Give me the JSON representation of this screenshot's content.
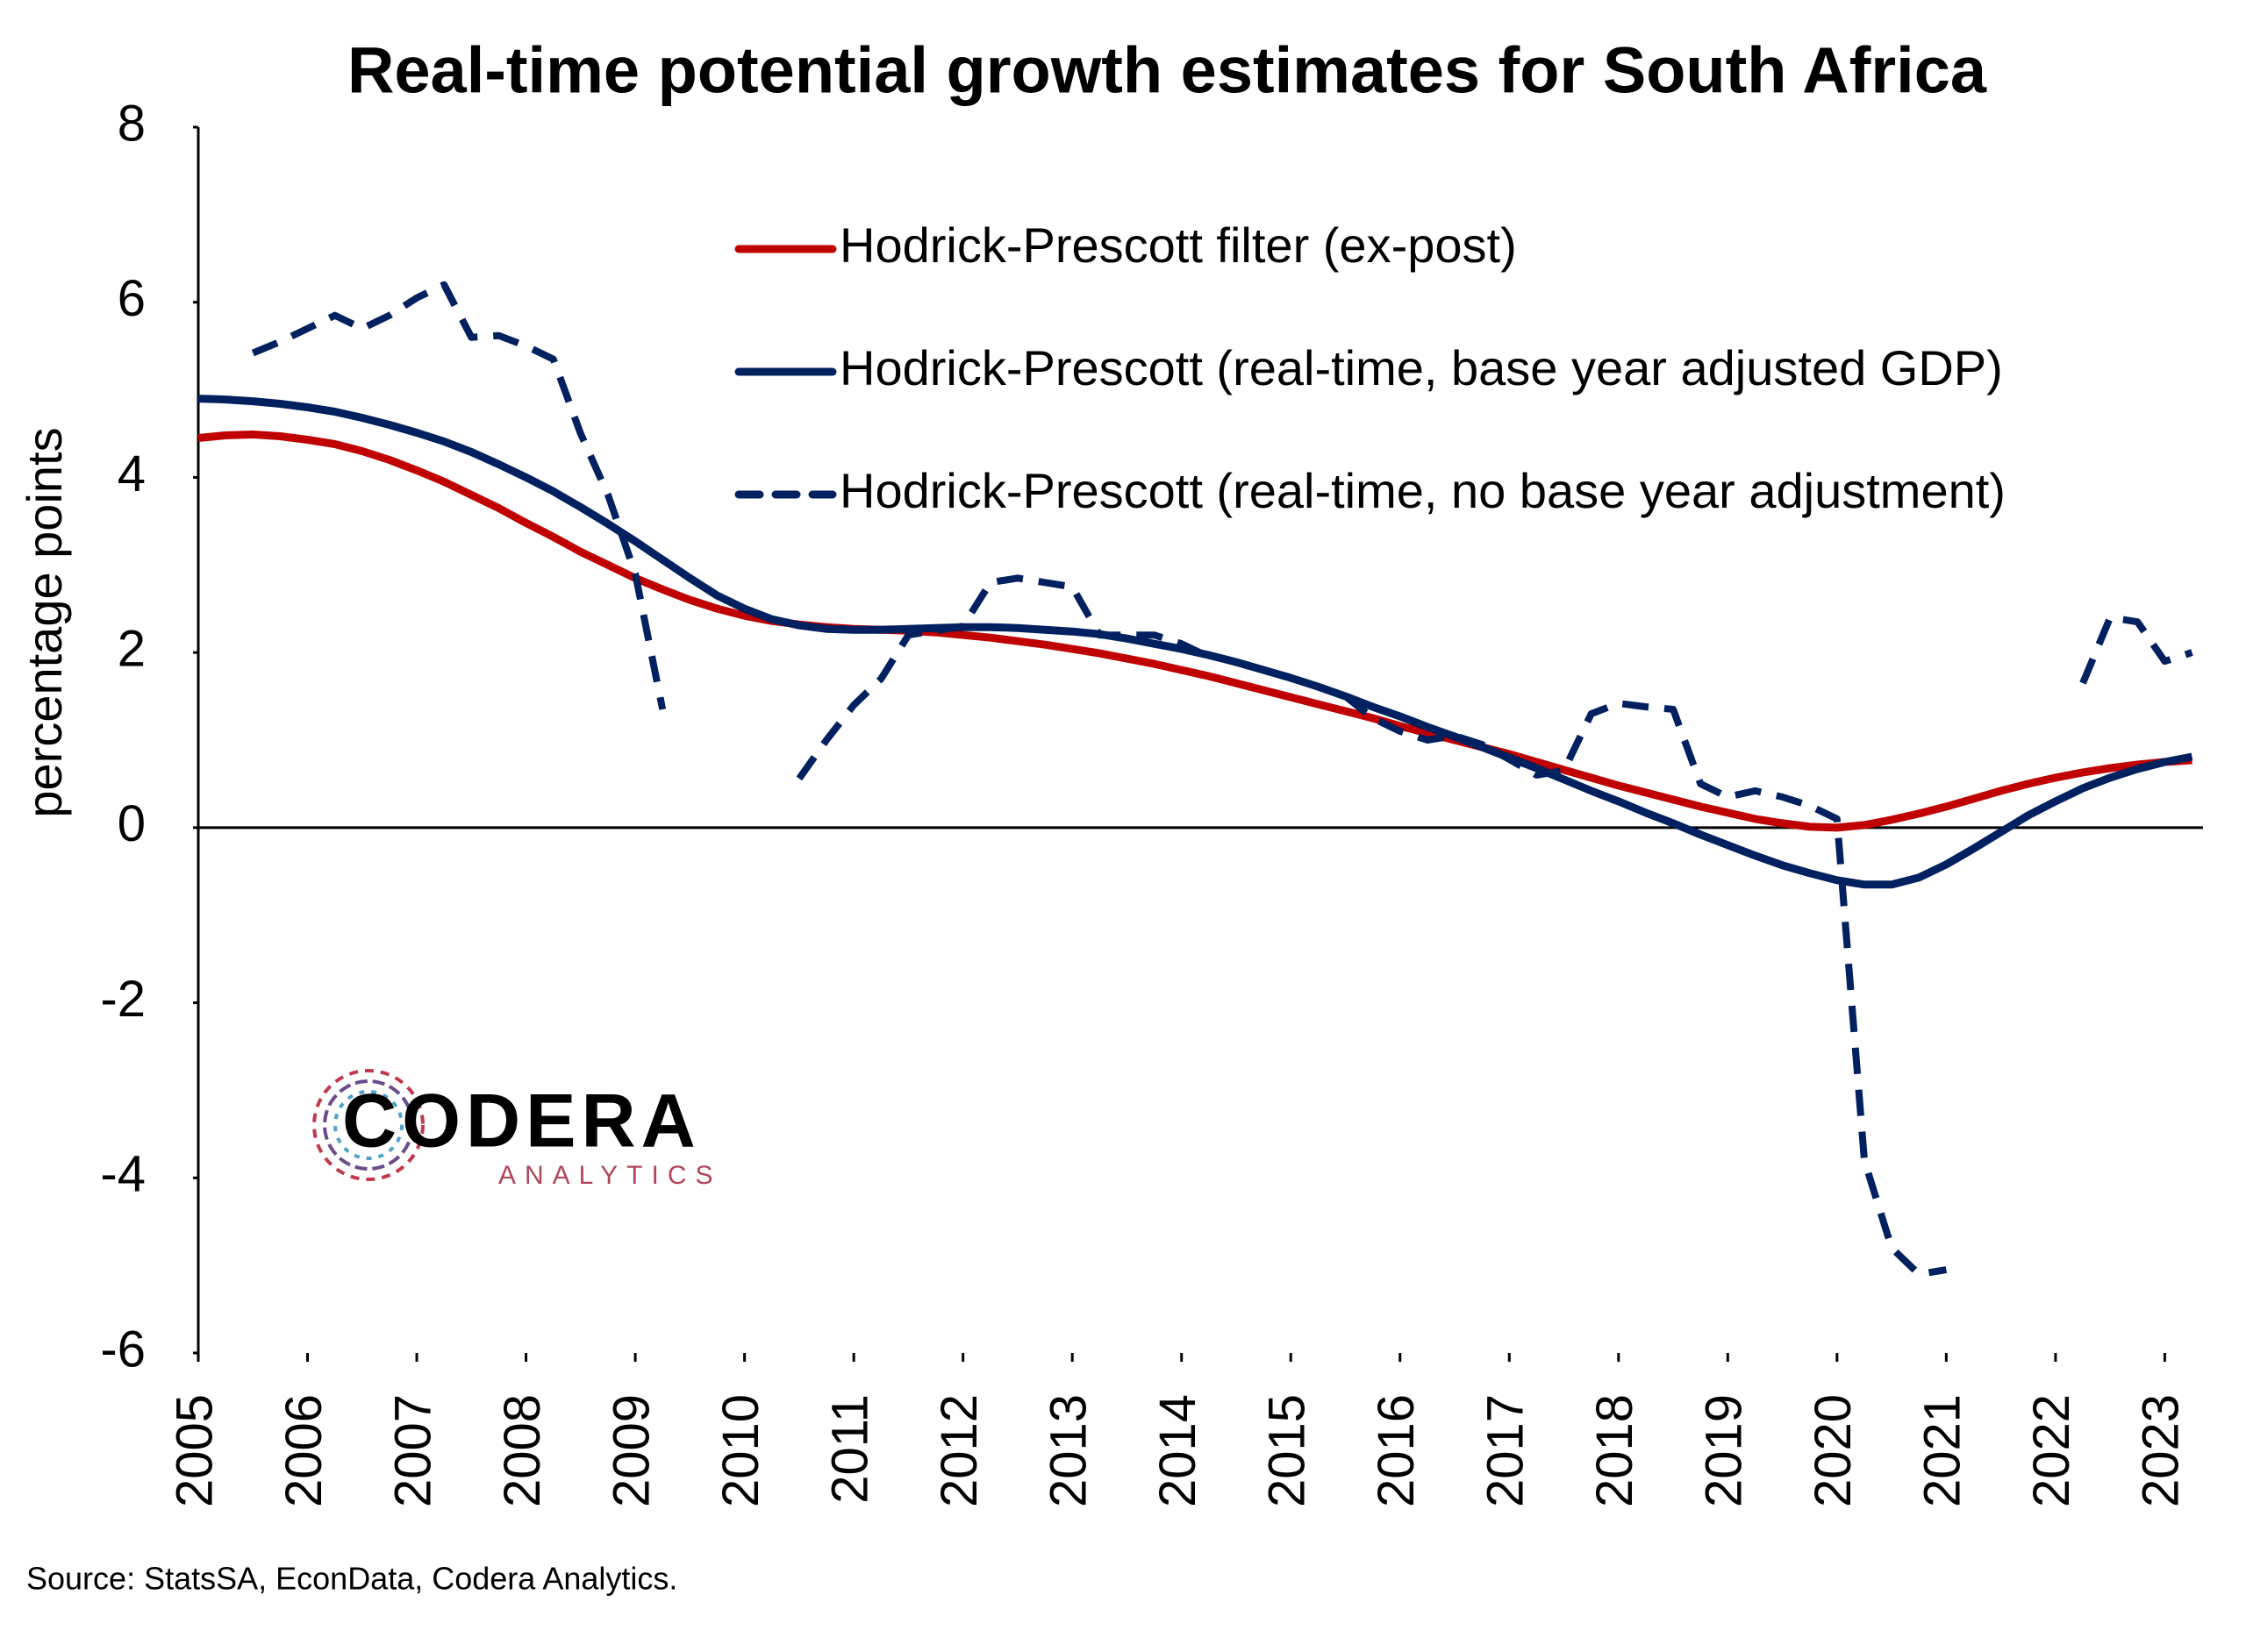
{
  "chart_data": {
    "type": "line",
    "title": "Real-time potential growth estimates for South Africa",
    "ylabel": "percentage points",
    "source": "Source: StatsSA, EconData, Codera Analytics.",
    "x": [
      2005,
      2005.25,
      2005.5,
      2005.75,
      2006,
      2006.25,
      2006.5,
      2006.75,
      2007,
      2007.25,
      2007.5,
      2007.75,
      2008,
      2008.25,
      2008.5,
      2008.75,
      2009,
      2009.25,
      2009.5,
      2009.75,
      2010,
      2010.25,
      2010.5,
      2010.75,
      2011,
      2011.25,
      2011.5,
      2011.75,
      2012,
      2012.25,
      2012.5,
      2012.75,
      2013,
      2013.25,
      2013.5,
      2013.75,
      2014,
      2014.25,
      2014.5,
      2014.75,
      2015,
      2015.25,
      2015.5,
      2015.75,
      2016,
      2016.25,
      2016.5,
      2016.75,
      2017,
      2017.25,
      2017.5,
      2017.75,
      2018,
      2018.25,
      2018.5,
      2018.75,
      2019,
      2019.25,
      2019.5,
      2019.75,
      2020,
      2020.25,
      2020.5,
      2020.75,
      2021,
      2021.25,
      2021.5,
      2021.75,
      2022,
      2022.25,
      2022.5,
      2022.75,
      2023,
      2023.25
    ],
    "series": [
      {
        "name": "Hodrick-Prescott filter (ex-post)",
        "color": "#c00000",
        "style": "solid",
        "values": [
          4.45,
          4.48,
          4.49,
          4.47,
          4.43,
          4.38,
          4.3,
          4.2,
          4.08,
          3.95,
          3.8,
          3.65,
          3.48,
          3.32,
          3.15,
          3.0,
          2.85,
          2.72,
          2.6,
          2.5,
          2.42,
          2.36,
          2.32,
          2.29,
          2.27,
          2.26,
          2.25,
          2.23,
          2.2,
          2.17,
          2.13,
          2.09,
          2.04,
          1.99,
          1.93,
          1.87,
          1.8,
          1.73,
          1.65,
          1.57,
          1.49,
          1.41,
          1.33,
          1.25,
          1.16,
          1.08,
          1.0,
          0.92,
          0.84,
          0.75,
          0.66,
          0.57,
          0.48,
          0.4,
          0.32,
          0.24,
          0.17,
          0.1,
          0.05,
          0.01,
          0.0,
          0.03,
          0.09,
          0.16,
          0.24,
          0.33,
          0.42,
          0.5,
          0.57,
          0.63,
          0.68,
          0.72,
          0.75,
          0.77
        ]
      },
      {
        "name": "Hodrick-Prescott (real-time, base year adjusted GDP)",
        "color": "#002060",
        "style": "solid",
        "values": [
          4.9,
          4.89,
          4.87,
          4.84,
          4.8,
          4.75,
          4.68,
          4.6,
          4.51,
          4.41,
          4.29,
          4.15,
          4.0,
          3.84,
          3.66,
          3.47,
          3.27,
          3.06,
          2.85,
          2.65,
          2.5,
          2.38,
          2.31,
          2.27,
          2.26,
          2.26,
          2.27,
          2.28,
          2.29,
          2.29,
          2.28,
          2.26,
          2.24,
          2.21,
          2.16,
          2.1,
          2.04,
          1.97,
          1.89,
          1.8,
          1.71,
          1.61,
          1.5,
          1.38,
          1.27,
          1.15,
          1.04,
          0.92,
          0.8,
          0.68,
          0.55,
          0.42,
          0.3,
          0.17,
          0.05,
          -0.08,
          -0.2,
          -0.32,
          -0.43,
          -0.52,
          -0.6,
          -0.65,
          -0.65,
          -0.57,
          -0.42,
          -0.24,
          -0.05,
          0.14,
          0.3,
          0.45,
          0.57,
          0.67,
          0.75,
          0.81
        ]
      },
      {
        "name": "Hodrick-Prescott (real-time, no base year adjustment)",
        "color": "#002060",
        "style": "dashed",
        "values": [
          null,
          null,
          5.42,
          5.55,
          5.7,
          5.85,
          5.7,
          5.85,
          6.05,
          6.2,
          5.6,
          5.62,
          5.5,
          5.35,
          4.5,
          3.8,
          2.9,
          1.35,
          null,
          null,
          null,
          null,
          0.56,
          1.0,
          1.4,
          1.7,
          2.2,
          2.25,
          2.3,
          2.8,
          2.85,
          2.8,
          2.75,
          2.2,
          2.2,
          2.2,
          2.1,
          1.95,
          null,
          null,
          null,
          null,
          1.5,
          1.25,
          1.1,
          1.0,
          1.05,
          0.95,
          0.78,
          0.6,
          0.65,
          1.3,
          1.42,
          1.38,
          1.35,
          0.5,
          0.35,
          0.42,
          0.35,
          0.25,
          0.1,
          -3.8,
          -4.8,
          -5.1,
          -5.05,
          null,
          null,
          null,
          null,
          1.65,
          2.4,
          2.35,
          1.9,
          2.0
        ]
      }
    ],
    "xlim": [
      2005,
      2023.35
    ],
    "xticks": [
      2005,
      2006,
      2007,
      2008,
      2009,
      2010,
      2011,
      2012,
      2013,
      2014,
      2015,
      2016,
      2017,
      2018,
      2019,
      2020,
      2021,
      2022,
      2023
    ],
    "ylim": [
      -6,
      8
    ],
    "yticks": [
      8,
      6,
      4,
      2,
      0,
      -2,
      -4,
      -6
    ]
  },
  "logo": {
    "name": "CODERA",
    "tagline": "ANALYTICS"
  }
}
